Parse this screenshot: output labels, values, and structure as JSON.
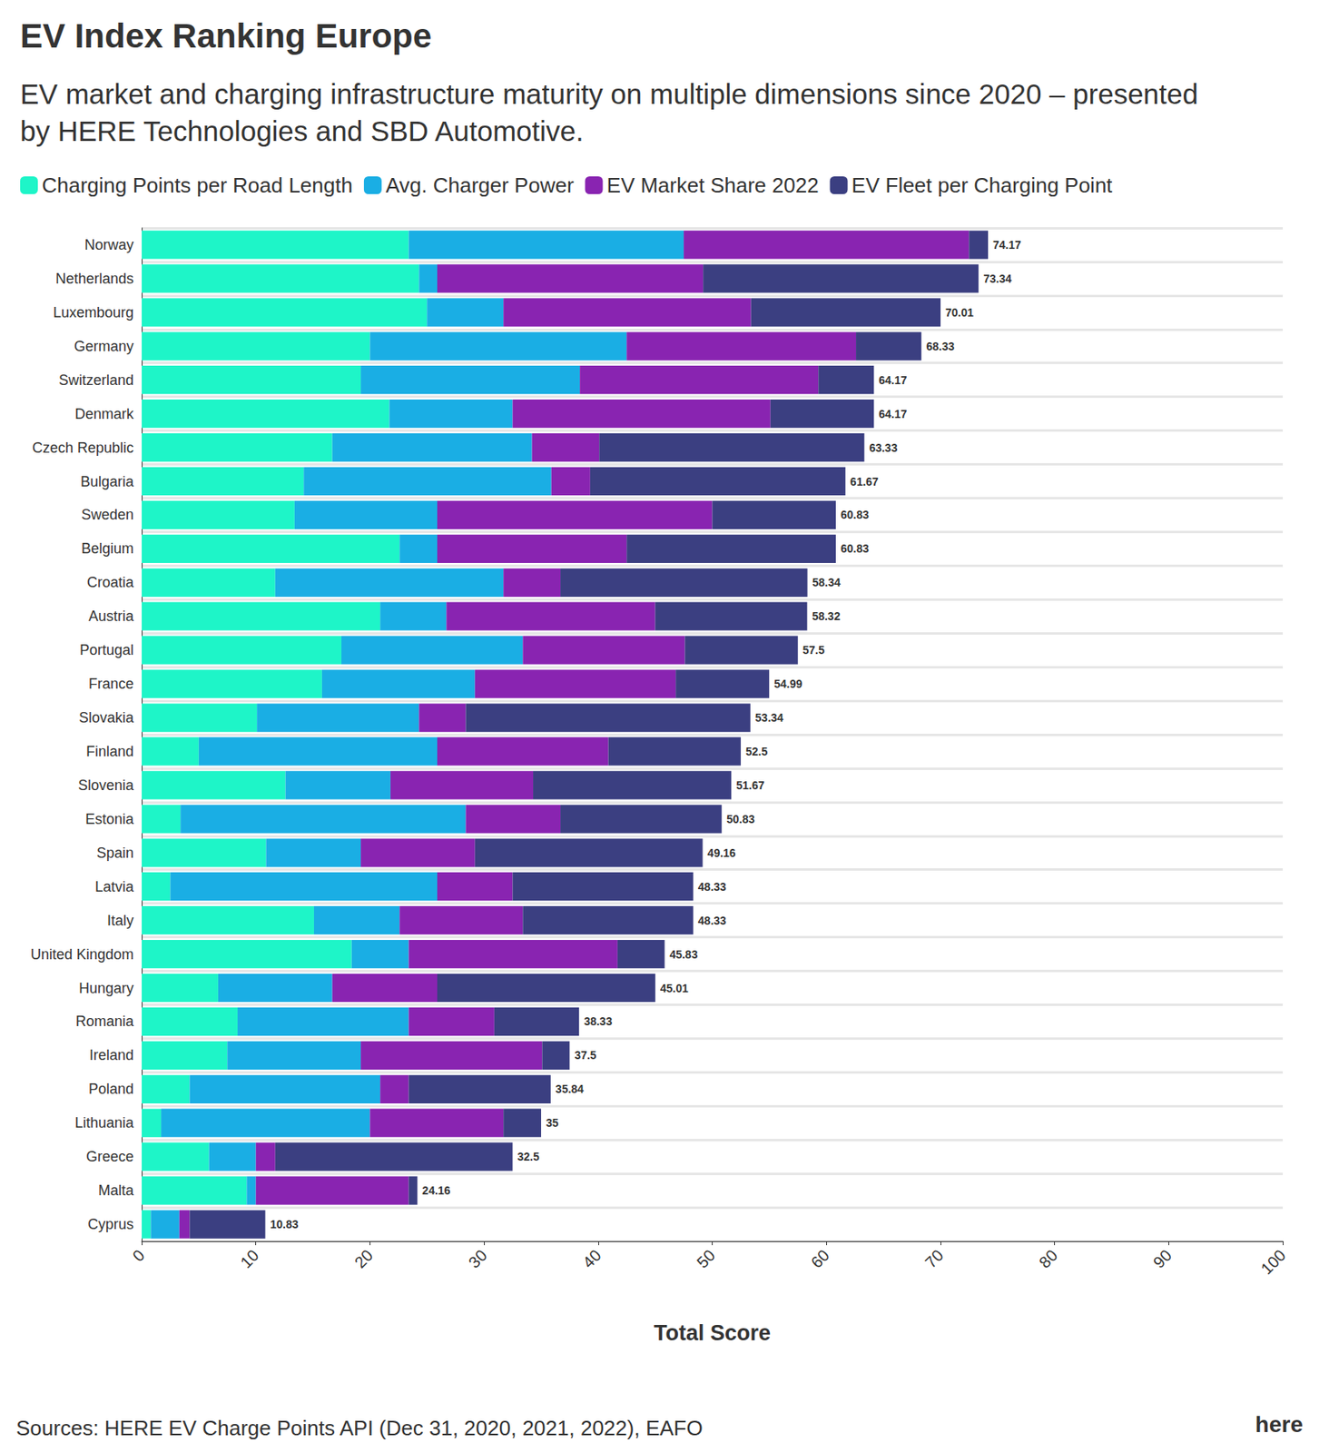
{
  "chart_data": {
    "type": "bar",
    "orientation": "horizontal",
    "stacked": true,
    "grid": true,
    "legend": "top-left",
    "title": "EV Index Ranking Europe",
    "subtitle": "EV market and charging infrastructure maturity on multiple dimensions since 2020 – presented by HERE Technologies and SBD Automotive.",
    "x_label": "Total Score",
    "source": "Sources: HERE EV Charge Points API (Dec 31, 2020, 2021, 2022), EAFO",
    "logo": "here",
    "xlim": [
      0,
      100
    ],
    "xticks": [
      0,
      10,
      20,
      30,
      40,
      50,
      60,
      70,
      80,
      90,
      100
    ],
    "categories": [
      "Norway",
      "Netherlands",
      "Luxembourg",
      "Germany",
      "Switzerland",
      "Denmark",
      "Czech Republic",
      "Bulgaria",
      "Sweden",
      "Belgium",
      "Croatia",
      "Austria",
      "Portugal",
      "France",
      "Slovakia",
      "Finland",
      "Slovenia",
      "Estonia",
      "Spain",
      "Latvia",
      "Italy",
      "United Kingdom",
      "Hungary",
      "Romania",
      "Ireland",
      "Poland",
      "Lithuania",
      "Greece",
      "Malta",
      "Cyprus"
    ],
    "series": [
      {
        "name": "Charging Points per Road Length",
        "color": "#1ef5c8",
        "values": [
          23.4,
          24.3,
          25.0,
          20.0,
          19.2,
          21.7,
          16.7,
          14.2,
          13.4,
          22.6,
          11.7,
          20.9,
          17.5,
          15.8,
          10.1,
          5.0,
          12.6,
          3.4,
          10.9,
          2.5,
          15.1,
          18.4,
          6.7,
          8.4,
          7.5,
          4.2,
          1.7,
          5.9,
          9.2,
          0.8
        ]
      },
      {
        "name": "Avg. Charger Power",
        "color": "#1aaee4",
        "values": [
          24.1,
          1.6,
          6.7,
          22.5,
          19.2,
          10.8,
          17.5,
          21.7,
          12.5,
          3.3,
          20.0,
          5.8,
          15.9,
          13.4,
          14.2,
          20.9,
          9.2,
          25.0,
          8.3,
          23.4,
          7.5,
          5.0,
          10.0,
          15.0,
          11.7,
          16.7,
          18.3,
          4.1,
          0.8,
          2.5
        ]
      },
      {
        "name": "EV Market Share 2022",
        "color": "#8924b1",
        "values": [
          25.0,
          23.3,
          21.7,
          20.1,
          20.9,
          22.6,
          5.9,
          3.4,
          24.1,
          16.6,
          5.0,
          18.3,
          14.2,
          17.6,
          4.1,
          15.0,
          12.5,
          8.3,
          10.0,
          6.6,
          10.8,
          18.3,
          9.2,
          7.5,
          15.9,
          2.5,
          11.7,
          1.7,
          13.4,
          0.9
        ]
      },
      {
        "name": "EV Fleet per Charging Point",
        "color": "#3b3f81",
        "values": [
          1.67,
          24.14,
          16.61,
          5.73,
          4.87,
          9.07,
          23.23,
          22.37,
          10.83,
          18.33,
          21.64,
          13.32,
          9.9,
          8.19,
          24.94,
          11.6,
          17.37,
          14.13,
          19.96,
          15.83,
          14.93,
          4.13,
          19.11,
          7.43,
          2.4,
          12.44,
          3.3,
          20.8,
          0.76,
          6.63
        ]
      }
    ],
    "totals": [
      74.17,
      73.34,
      70.01,
      68.33,
      64.17,
      64.17,
      63.33,
      61.67,
      60.83,
      60.83,
      58.34,
      58.32,
      57.5,
      54.99,
      53.34,
      52.5,
      51.67,
      50.83,
      49.16,
      48.33,
      48.33,
      45.83,
      45.01,
      38.33,
      37.5,
      35.84,
      35,
      32.5,
      24.16,
      10.83
    ]
  }
}
